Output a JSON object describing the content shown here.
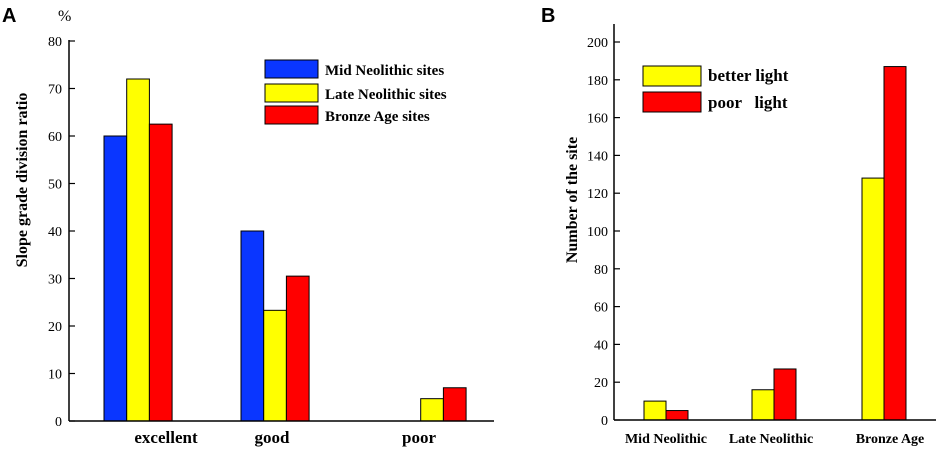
{
  "chart_data": [
    {
      "panel": "A",
      "type": "bar",
      "ylabel": "Slope grade division ratio",
      "yunit": "%",
      "ylim": [
        0,
        80
      ],
      "yticks": [
        0,
        10,
        20,
        30,
        40,
        50,
        60,
        70,
        80
      ],
      "categories": [
        "excellent",
        "good",
        "poor"
      ],
      "series": [
        {
          "name": "Mid Neolithic sites",
          "color": "#0a36ff",
          "values": [
            60,
            40,
            0
          ]
        },
        {
          "name": "Late Neolithic sites",
          "color": "#ffff00",
          "values": [
            72,
            23.3,
            4.7
          ]
        },
        {
          "name": "Bronze Age sites",
          "color": "#ff0000",
          "values": [
            62.5,
            30.5,
            7
          ]
        }
      ]
    },
    {
      "panel": "B",
      "type": "bar",
      "ylabel": "Number of the site",
      "ylim": [
        0,
        210
      ],
      "yticks": [
        0,
        20,
        40,
        60,
        80,
        100,
        120,
        140,
        160,
        180,
        200
      ],
      "categories": [
        "Mid Neolithic",
        "Late Neolithic",
        "Bronze Age"
      ],
      "series": [
        {
          "name": "better light",
          "color": "#ffff00",
          "values": [
            10,
            16,
            128
          ]
        },
        {
          "name": "poor   light",
          "color": "#ff0000",
          "values": [
            5,
            27,
            187
          ]
        }
      ]
    }
  ]
}
